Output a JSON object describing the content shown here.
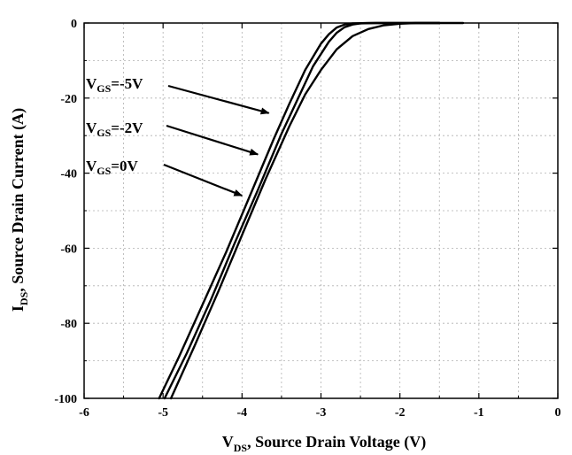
{
  "chart_data": {
    "type": "line",
    "xlabel": {
      "main": "V",
      "sub": "DS",
      "rest": ", Source Drain Voltage (V)"
    },
    "ylabel": {
      "main": "I",
      "sub": "DS",
      "rest": ", Source Drain Current (A)"
    },
    "xlim": [
      -6,
      0
    ],
    "ylim": [
      -100,
      0
    ],
    "xticks": [
      -6,
      -5,
      -4,
      -3,
      -2,
      -1,
      0
    ],
    "yticks": [
      0,
      -20,
      -40,
      -60,
      -80,
      -100
    ],
    "grid": true,
    "series": [
      {
        "name": "VGS=-5V",
        "x": [
          -5.05,
          -4.8,
          -4.5,
          -4.2,
          -3.9,
          -3.6,
          -3.4,
          -3.2,
          -3.0,
          -2.9,
          -2.8,
          -2.7,
          -2.6,
          -2.4,
          -2.0,
          -1.5
        ],
        "y": [
          -100,
          -89,
          -75,
          -61,
          -46,
          -31,
          -21.5,
          -12.5,
          -5.5,
          -3,
          -1.2,
          -0.4,
          -0.1,
          0,
          0,
          0
        ]
      },
      {
        "name": "VGS=-2V",
        "x": [
          -4.98,
          -4.7,
          -4.4,
          -4.1,
          -3.8,
          -3.5,
          -3.3,
          -3.1,
          -2.9,
          -2.8,
          -2.7,
          -2.6,
          -2.5,
          -2.3,
          -2.0,
          -1.5
        ],
        "y": [
          -100,
          -88,
          -74,
          -59,
          -44.5,
          -29.5,
          -20.5,
          -11.5,
          -5,
          -2.6,
          -1.1,
          -0.4,
          -0.1,
          0,
          0,
          0
        ]
      },
      {
        "name": "VGS=0V",
        "x": [
          -4.9,
          -4.6,
          -4.3,
          -4.0,
          -3.7,
          -3.4,
          -3.2,
          -3.0,
          -2.8,
          -2.6,
          -2.4,
          -2.2,
          -2.0,
          -1.8,
          -1.6,
          -1.2
        ],
        "y": [
          -100,
          -86,
          -71.5,
          -56.5,
          -41.5,
          -27.5,
          -19,
          -12.5,
          -7,
          -3.5,
          -1.6,
          -0.6,
          -0.2,
          0,
          0,
          0
        ]
      }
    ],
    "annotations": [
      {
        "pre": "V",
        "sub": "GS",
        "post": "=-5V",
        "target": [
          -3.66,
          -24
        ]
      },
      {
        "pre": "V",
        "sub": "GS",
        "post": "=-2V",
        "target": [
          -3.8,
          -35
        ]
      },
      {
        "pre": "V",
        "sub": "GS",
        "post": "=0V",
        "target": [
          -4.0,
          -46
        ]
      }
    ]
  }
}
